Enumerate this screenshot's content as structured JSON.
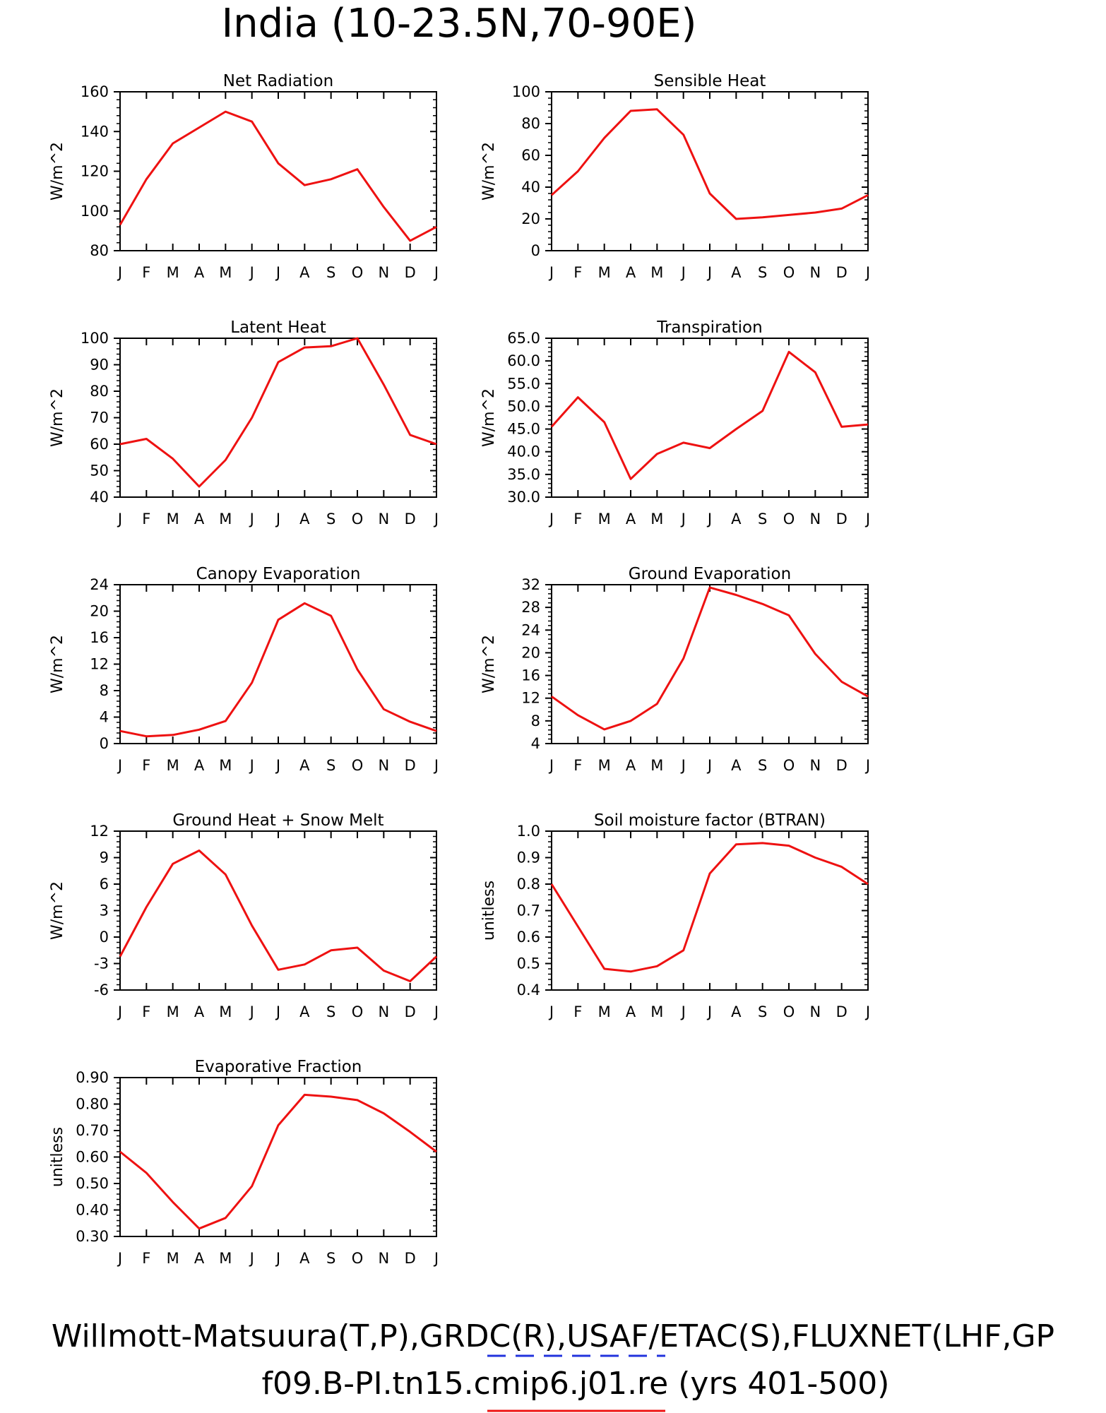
{
  "figure": {
    "main_title": "India (10-23.5N,70-90E)",
    "footer_line1": "Willmott-Matsuura(T,P),GRDC(R),USAF/ETAC(S),FLUXNET(LHF,GP",
    "footer_line2": "f09.B-PI.tn15.cmip6.j01.re (yrs 401-500)",
    "line_color": "#ee1111",
    "obs_underline_color": "#2233dd"
  },
  "chart_data": [
    {
      "type": "line",
      "title": "Net Radiation",
      "ylabel": "W/m^2",
      "x": [
        "J",
        "F",
        "M",
        "A",
        "M",
        "J",
        "J",
        "A",
        "S",
        "O",
        "N",
        "D",
        "J"
      ],
      "ylim": [
        80,
        160
      ],
      "yticks": [
        "80",
        "100",
        "120",
        "140",
        "160"
      ],
      "series": [
        {
          "values": [
            93,
            116,
            134,
            142,
            150,
            145,
            124,
            113,
            116,
            121,
            102,
            85,
            92
          ]
        }
      ]
    },
    {
      "type": "line",
      "title": "Sensible Heat",
      "ylabel": "W/m^2",
      "x": [
        "J",
        "F",
        "M",
        "A",
        "M",
        "J",
        "J",
        "A",
        "S",
        "O",
        "N",
        "D",
        "J"
      ],
      "ylim": [
        0,
        100
      ],
      "yticks": [
        "0",
        "20",
        "40",
        "60",
        "80",
        "100"
      ],
      "series": [
        {
          "values": [
            35,
            50,
            71,
            88,
            89,
            73,
            36,
            20,
            21,
            22.5,
            24,
            26.5,
            35
          ]
        }
      ]
    },
    {
      "type": "line",
      "title": "Latent Heat",
      "ylabel": "W/m^2",
      "x": [
        "J",
        "F",
        "M",
        "A",
        "M",
        "J",
        "J",
        "A",
        "S",
        "O",
        "N",
        "D",
        "J"
      ],
      "ylim": [
        40,
        100
      ],
      "yticks": [
        "40",
        "50",
        "60",
        "70",
        "80",
        "90",
        "100"
      ],
      "series": [
        {
          "values": [
            60,
            62,
            54.5,
            44,
            54,
            70,
            91,
            96.5,
            97,
            100,
            82.5,
            63.5,
            60
          ]
        }
      ]
    },
    {
      "type": "line",
      "title": "Transpiration",
      "ylabel": "W/m^2",
      "x": [
        "J",
        "F",
        "M",
        "A",
        "M",
        "J",
        "J",
        "A",
        "S",
        "O",
        "N",
        "D",
        "J"
      ],
      "ylim": [
        30,
        65
      ],
      "yticks": [
        "30.0",
        "35.0",
        "40.0",
        "45.0",
        "50.0",
        "55.0",
        "60.0",
        "65.0"
      ],
      "series": [
        {
          "values": [
            45.5,
            52,
            46.5,
            34,
            39.5,
            42,
            40.8,
            45,
            49,
            62,
            57.5,
            45.5,
            46
          ]
        }
      ]
    },
    {
      "type": "line",
      "title": "Canopy Evaporation",
      "ylabel": "W/m^2",
      "x": [
        "J",
        "F",
        "M",
        "A",
        "M",
        "J",
        "J",
        "A",
        "S",
        "O",
        "N",
        "D",
        "J"
      ],
      "ylim": [
        0,
        24
      ],
      "yticks": [
        "0",
        "4",
        "8",
        "12",
        "16",
        "20",
        "24"
      ],
      "series": [
        {
          "values": [
            1.9,
            1.1,
            1.3,
            2.1,
            3.4,
            9.2,
            18.7,
            21.2,
            19.3,
            11.2,
            5.2,
            3.3,
            1.9
          ]
        }
      ]
    },
    {
      "type": "line",
      "title": "Ground Evaporation",
      "ylabel": "W/m^2",
      "x": [
        "J",
        "F",
        "M",
        "A",
        "M",
        "J",
        "J",
        "A",
        "S",
        "O",
        "N",
        "D",
        "J"
      ],
      "ylim": [
        4,
        32
      ],
      "yticks": [
        "4",
        "8",
        "12",
        "16",
        "20",
        "24",
        "28",
        "32"
      ],
      "series": [
        {
          "values": [
            12.3,
            9,
            6.5,
            8,
            11,
            19,
            31.5,
            30.2,
            28.6,
            26.6,
            19.8,
            14.9,
            12.3
          ]
        }
      ]
    },
    {
      "type": "line",
      "title": "Ground Heat + Snow Melt",
      "ylabel": "W/m^2",
      "x": [
        "J",
        "F",
        "M",
        "A",
        "M",
        "J",
        "J",
        "A",
        "S",
        "O",
        "N",
        "D",
        "J"
      ],
      "ylim": [
        -6,
        12
      ],
      "yticks": [
        "-6",
        "-3",
        "0",
        "3",
        "6",
        "9",
        "12"
      ],
      "series": [
        {
          "values": [
            -2.2,
            3.4,
            8.3,
            9.8,
            7.1,
            1.3,
            -3.7,
            -3.1,
            -1.5,
            -1.2,
            -3.8,
            -5,
            -2.2
          ]
        }
      ]
    },
    {
      "type": "line",
      "title": "Soil moisture factor (BTRAN)",
      "ylabel": "unitless",
      "x": [
        "J",
        "F",
        "M",
        "A",
        "M",
        "J",
        "J",
        "A",
        "S",
        "O",
        "N",
        "D",
        "J"
      ],
      "ylim": [
        0.4,
        1.0
      ],
      "yticks": [
        "0.4",
        "0.5",
        "0.6",
        "0.7",
        "0.8",
        "0.9",
        "1.0"
      ],
      "series": [
        {
          "values": [
            0.8,
            0.64,
            0.48,
            0.47,
            0.49,
            0.55,
            0.84,
            0.95,
            0.955,
            0.945,
            0.9,
            0.865,
            0.8
          ]
        }
      ]
    },
    {
      "type": "line",
      "title": "Evaporative Fraction",
      "ylabel": "unitless",
      "x": [
        "J",
        "F",
        "M",
        "A",
        "M",
        "J",
        "J",
        "A",
        "S",
        "O",
        "N",
        "D",
        "J"
      ],
      "ylim": [
        0.3,
        0.9
      ],
      "yticks": [
        "0.30",
        "0.40",
        "0.50",
        "0.60",
        "0.70",
        "0.80",
        "0.90"
      ],
      "series": [
        {
          "values": [
            0.62,
            0.54,
            0.43,
            0.33,
            0.37,
            0.49,
            0.72,
            0.835,
            0.828,
            0.815,
            0.765,
            0.695,
            0.62
          ]
        }
      ]
    }
  ]
}
